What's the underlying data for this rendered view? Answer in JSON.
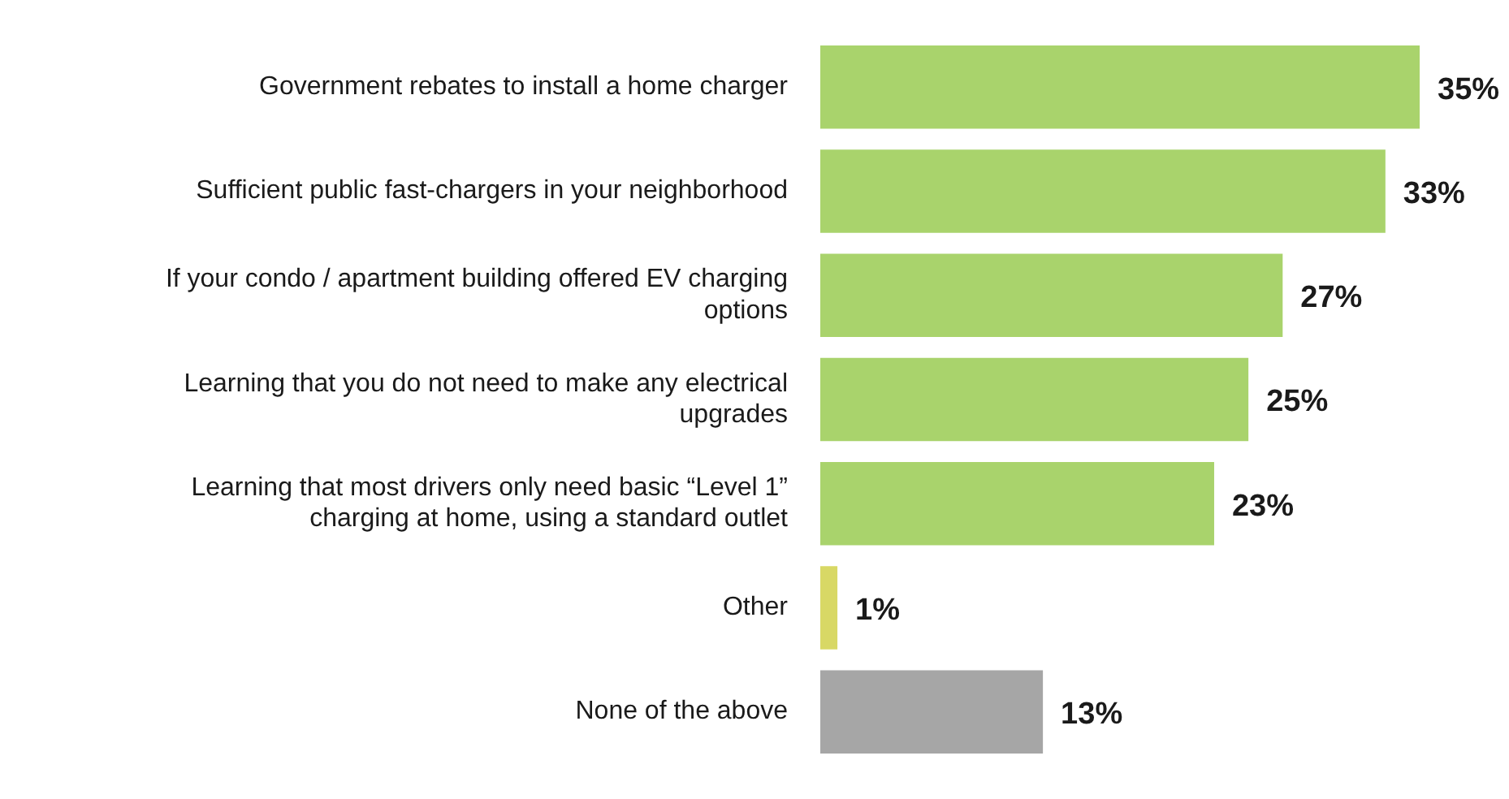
{
  "chart_data": {
    "type": "bar",
    "orientation": "horizontal",
    "categories": [
      "Government rebates to install a home charger",
      "Sufficient public fast-chargers in your neighborhood",
      "If your condo / apartment building offered EV charging options",
      "Learning that you do not need to make any electrical upgrades",
      "Learning that most drivers only need basic “Level 1” charging at home, using a standard outlet",
      "Other",
      "None of the above"
    ],
    "values": [
      35,
      33,
      27,
      25,
      23,
      1,
      13
    ],
    "colors": [
      "#a9d36c",
      "#a9d36c",
      "#a9d36c",
      "#a9d36c",
      "#a9d36c",
      "#d8d865",
      "#a6a6a6"
    ],
    "value_labels": [
      "35%",
      "33%",
      "27%",
      "25%",
      "23%",
      "1%",
      "13%"
    ],
    "legend": false
  }
}
